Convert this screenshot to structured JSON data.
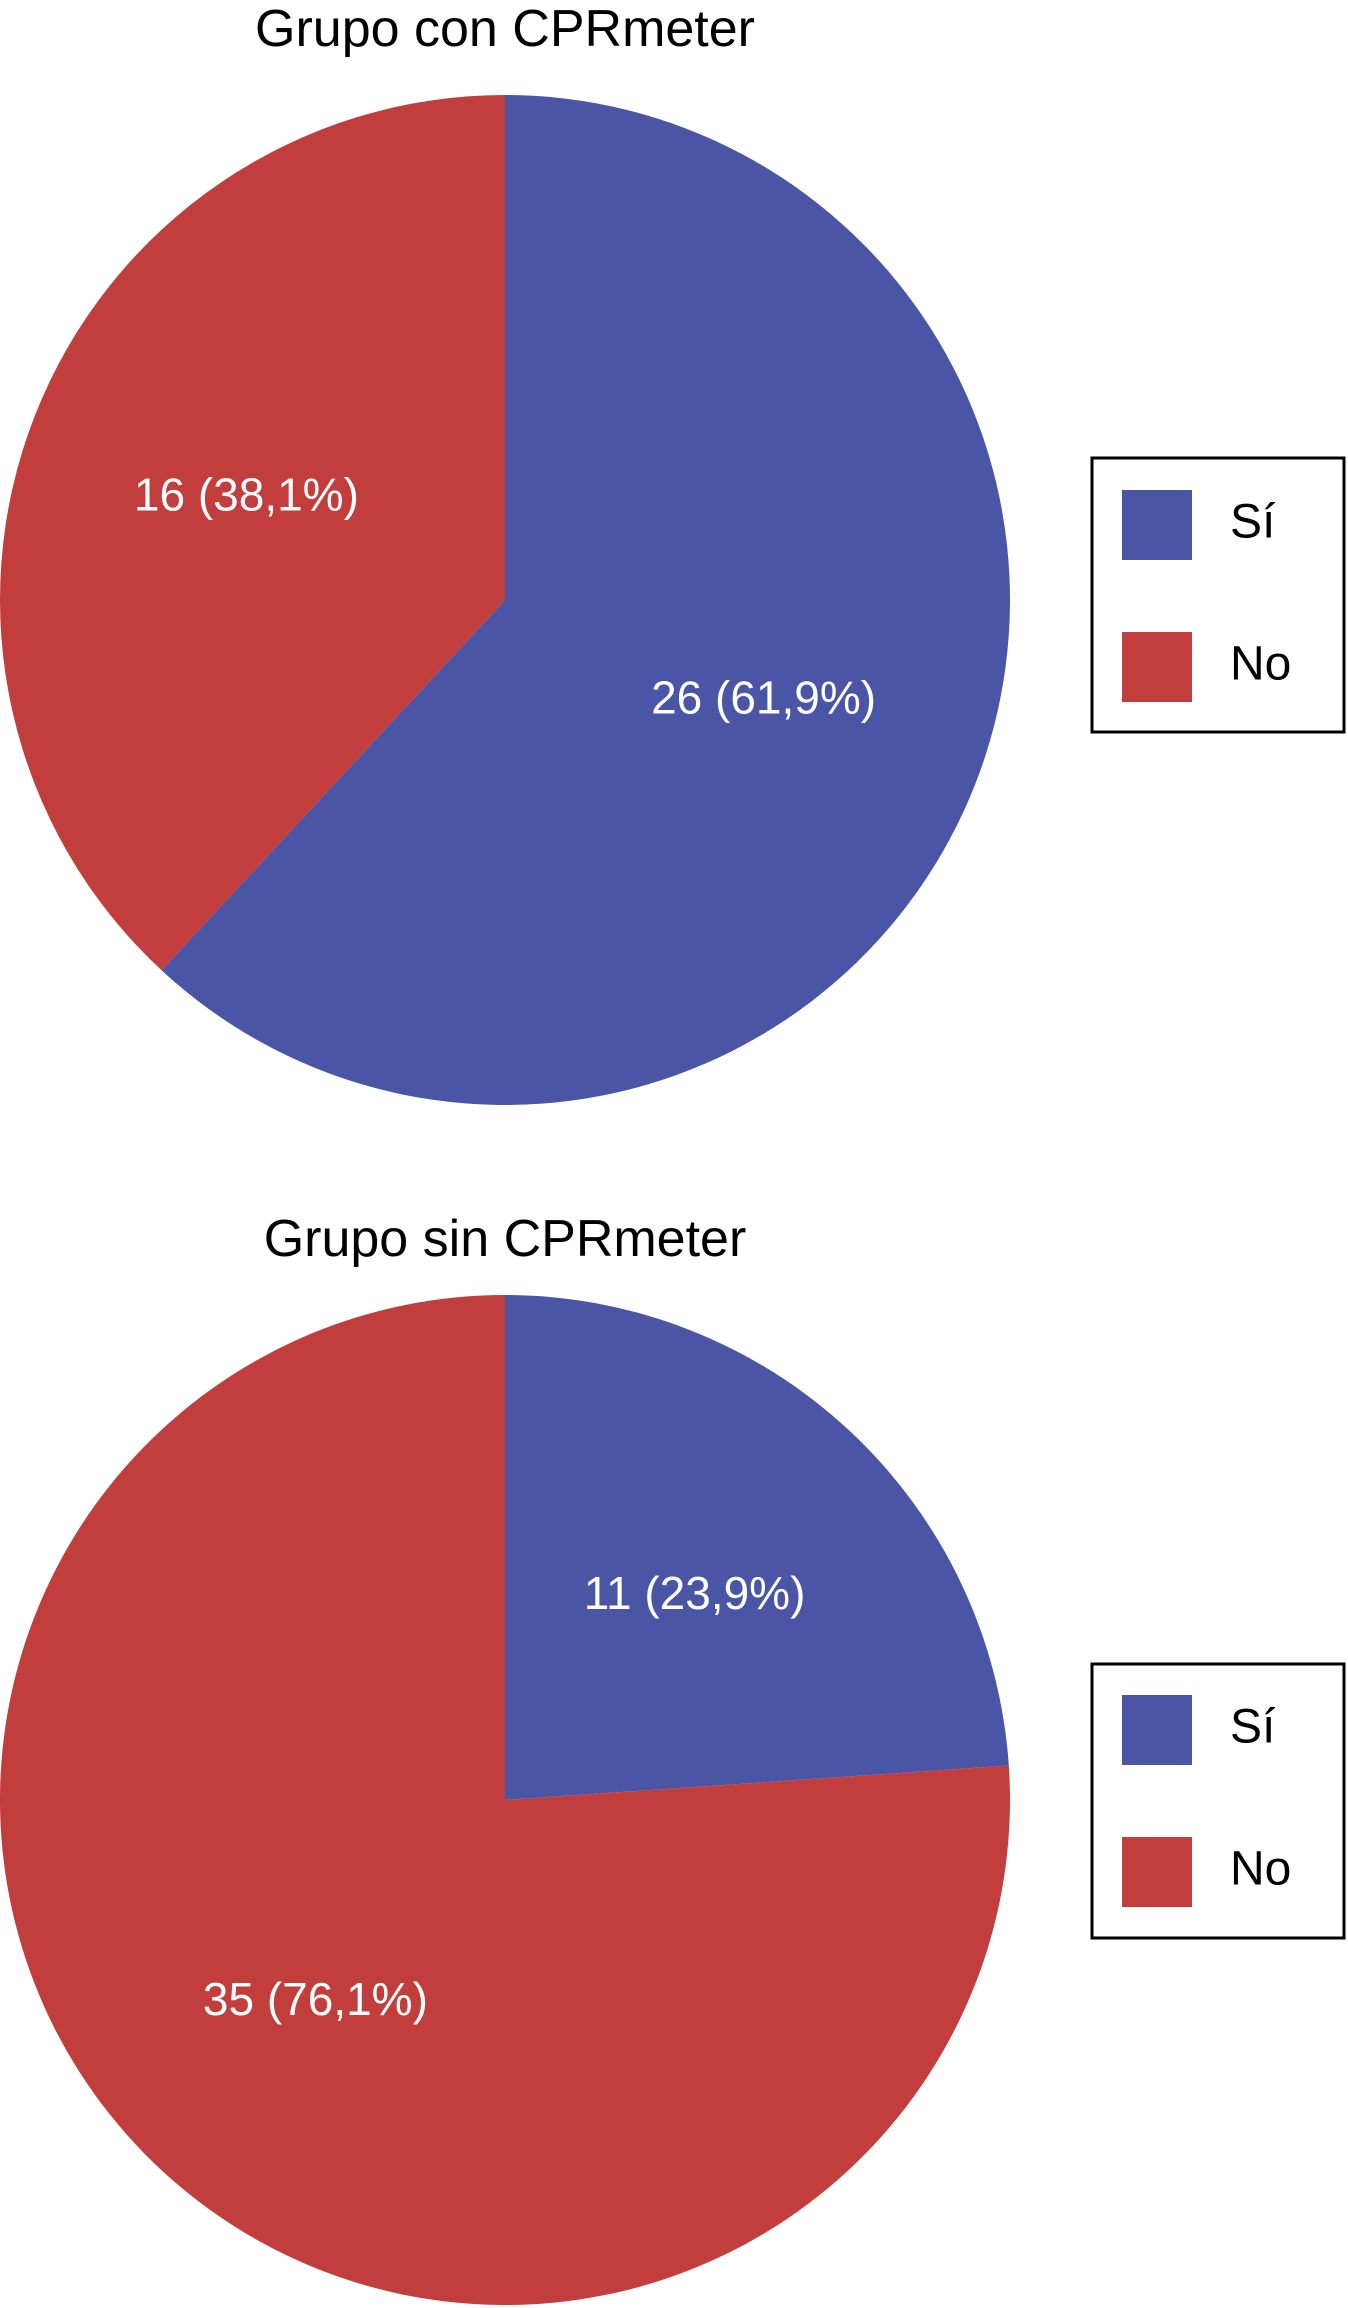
{
  "colors": {
    "si": "#4a56a5",
    "no": "#c23e3c"
  },
  "chart_data": [
    {
      "type": "pie",
      "title": "Grupo con CPRmeter",
      "categories": [
        "Sí",
        "No"
      ],
      "values": [
        26,
        16
      ],
      "labels": [
        "26 (61,9%)",
        "16 (38,1%)"
      ],
      "legend": [
        "Sí",
        "No"
      ],
      "legend_position": "right"
    },
    {
      "type": "pie",
      "title": "Grupo sin CPRmeter",
      "categories": [
        "Sí",
        "No"
      ],
      "values": [
        11,
        35
      ],
      "labels": [
        "11 (23,9%)",
        "35 (76,1%)"
      ],
      "legend": [
        "Sí",
        "No"
      ],
      "legend_position": "right"
    }
  ]
}
